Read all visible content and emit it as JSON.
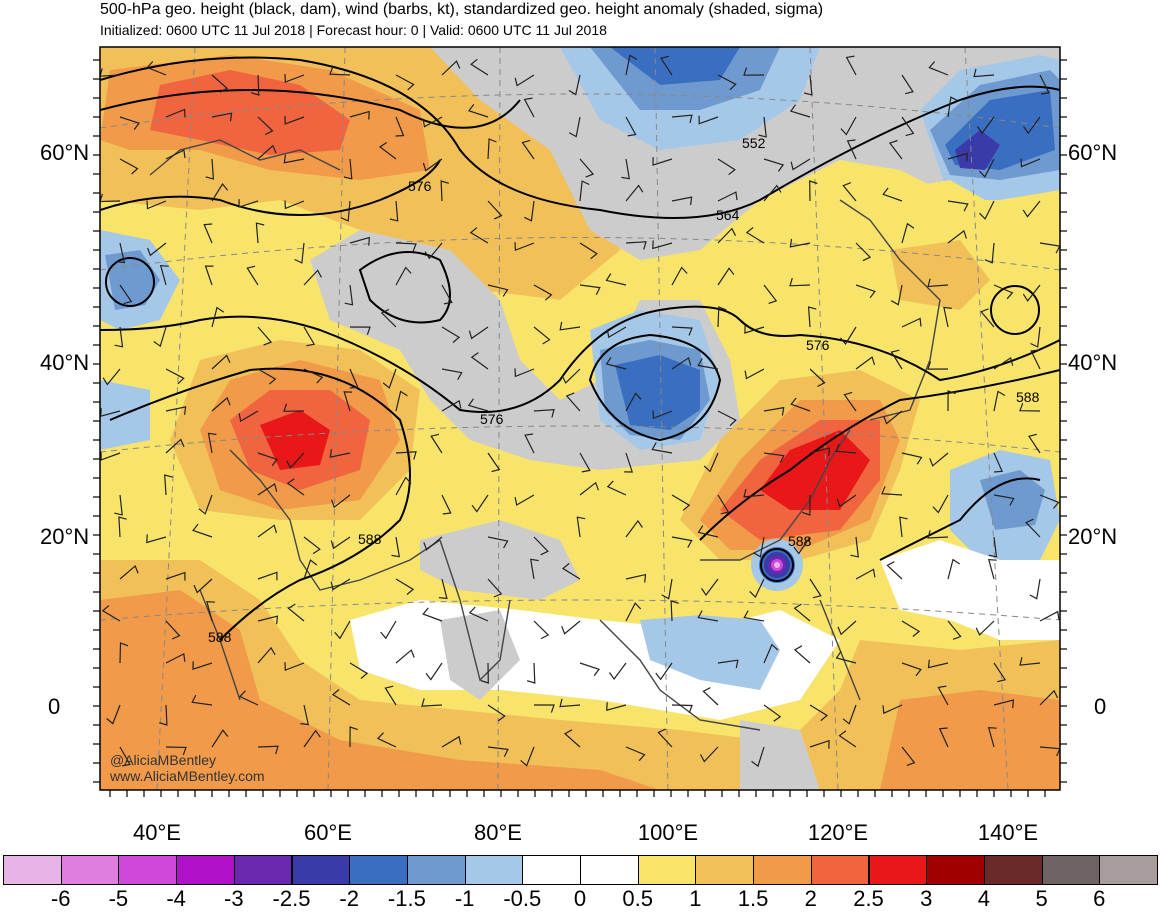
{
  "header": {
    "title": "500-hPa geo. height (black, dam), wind (barbs, kt), standardized geo. height anomaly (shaded, sigma)",
    "subtitle": "Initialized: 0600 UTC 11 Jul 2018 | Forecast hour: 0 | Valid: 0600 UTC 11 Jul 2018"
  },
  "map": {
    "lat_labels": [
      "60°N",
      "40°N",
      "20°N",
      "0"
    ],
    "lon_labels": [
      "40°E",
      "60°E",
      "80°E",
      "100°E",
      "120°E",
      "140°E"
    ],
    "contour_labels": [
      {
        "label": "552"
      },
      {
        "label": "564"
      },
      {
        "label": "576"
      },
      {
        "label": "576"
      },
      {
        "label": "576"
      },
      {
        "label": "588"
      },
      {
        "label": "588"
      },
      {
        "label": "588"
      },
      {
        "label": "588"
      }
    ],
    "credit_handle": "@AliciaMBentley",
    "credit_site": "www.AliciaMBentley.com"
  },
  "colorbar": {
    "ticks": [
      "-6",
      "-5",
      "-4",
      "-3",
      "-2.5",
      "-2",
      "-1.5",
      "-1",
      "-0.5",
      "0",
      "0.5",
      "1",
      "1.5",
      "2",
      "2.5",
      "3",
      "4",
      "5",
      "6"
    ],
    "colors": [
      "#e8b4e8",
      "#e07ee0",
      "#d048d8",
      "#b010c8",
      "#6a28b0",
      "#3a3aa8",
      "#3a6ec0",
      "#6e9ad0",
      "#a6c8e8",
      "#ffffff",
      "#ffffff",
      "#f8e46a",
      "#f2c058",
      "#f09a4a",
      "#f06440",
      "#e81818",
      "#a00000",
      "#6a2a2a",
      "#6e6464",
      "#a89c9c"
    ]
  }
}
